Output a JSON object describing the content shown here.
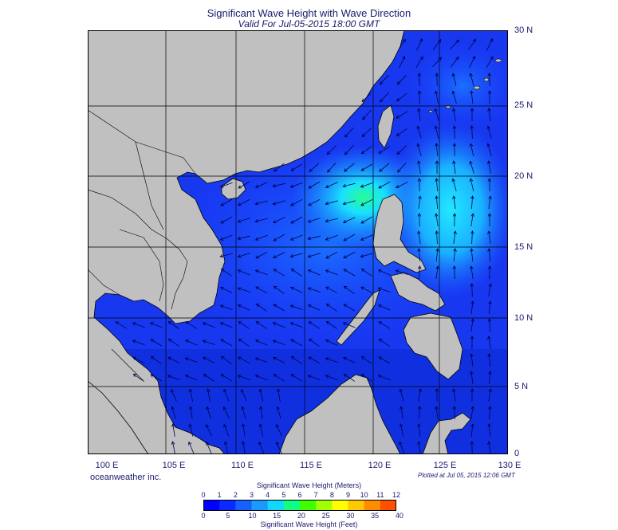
{
  "title": "Significant Wave Height with Wave Direction",
  "subtitle": "Valid For Jul-05-2015 18:00 GMT",
  "credit": "oceanweather inc.",
  "plotted": "Plotted at Jul 05, 2015 12:06 GMT",
  "lat_labels": [
    "30 N",
    "25 N",
    "20 N",
    "15 N",
    "10 N",
    "5 N",
    "0"
  ],
  "lon_labels": [
    "100 E",
    "105 E",
    "110 E",
    "115 E",
    "120 E",
    "125 E",
    "130 E"
  ],
  "colorbar": {
    "meters_title": "Significant Wave Height (Meters)",
    "feet_title": "Significant Wave Height (Feet)",
    "meters_ticks": [
      "0",
      "1",
      "2",
      "3",
      "4",
      "5",
      "6",
      "7",
      "8",
      "9",
      "10",
      "11",
      "12"
    ],
    "feet_ticks": [
      "0",
      "5",
      "10",
      "15",
      "20",
      "25",
      "30",
      "35",
      "40"
    ],
    "colors": [
      "#0000ff",
      "#0a2aff",
      "#1660ff",
      "#1a9aff",
      "#10d8ff",
      "#10ff80",
      "#40ff00",
      "#a0ff00",
      "#ffff00",
      "#ffc800",
      "#ff8c00",
      "#ff5000"
    ]
  },
  "colors": {
    "land": "#c0c0c0",
    "sea_base": "#1a40ff",
    "arrow": "#00004a",
    "grid": "#000000"
  }
}
